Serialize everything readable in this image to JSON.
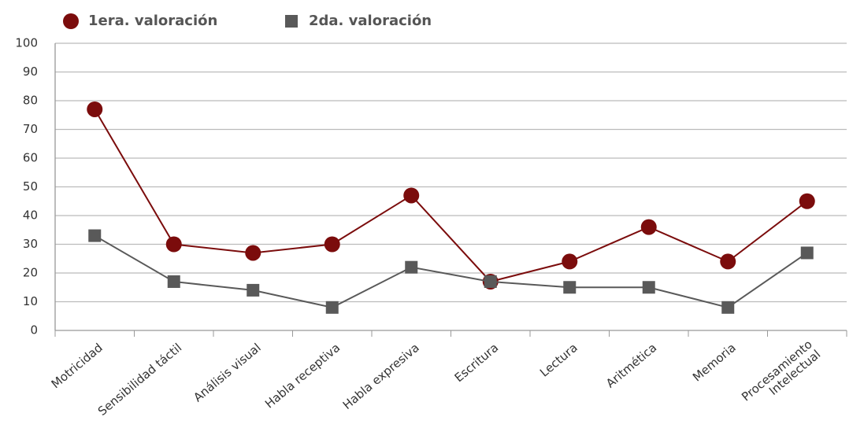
{
  "chart_data": {
    "type": "line",
    "categories": [
      "Motricidad",
      "Sensibilidad táctil",
      "Análisis visual",
      "Habla receptiva",
      "Habla expresiva",
      "Escritura",
      "Lectura",
      "Aritmética",
      "Memoria",
      "Procesamiento Intelectual"
    ],
    "series": [
      {
        "name": "1era. valoración",
        "color": "#7b0c0c",
        "marker": "circle",
        "values": [
          77,
          30,
          27,
          30,
          47,
          17,
          24,
          36,
          24,
          45
        ]
      },
      {
        "name": "2da. valoración",
        "color": "#595959",
        "marker": "square",
        "values": [
          33,
          17,
          14,
          8,
          22,
          17,
          15,
          15,
          8,
          27
        ]
      }
    ],
    "ylim": [
      0,
      100
    ],
    "yticks": [
      0,
      10,
      20,
      30,
      40,
      50,
      60,
      70,
      80,
      90,
      100
    ],
    "grid": true,
    "legend": "top-left"
  }
}
